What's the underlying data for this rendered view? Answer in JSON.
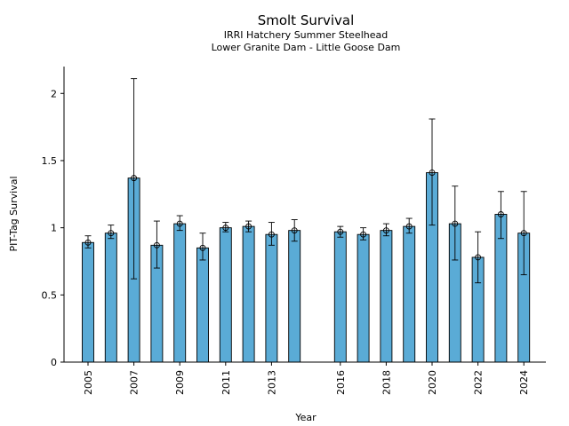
{
  "chart_data": {
    "type": "bar",
    "title": "Smolt Survival",
    "subtitle_lines": [
      "IRRI Hatchery Summer Steelhead",
      "Lower Granite Dam - Little Goose Dam"
    ],
    "xlabel": "Year",
    "ylabel": "PIT-Tag Survival",
    "ylim": [
      0,
      2.2
    ],
    "yticks": [
      0,
      0.5,
      1,
      1.5,
      2
    ],
    "ytick_labels": [
      "0",
      "0.5",
      "1",
      "1.5",
      "2"
    ],
    "grid": false,
    "colors": {
      "bar": "#5aabd6",
      "bar_edge": "#000000",
      "errorbar": "#000000"
    },
    "categories": [
      "2005",
      "2006",
      "2007",
      "2008",
      "2009",
      "2010",
      "2011",
      "2012",
      "2013",
      "2014",
      "2015",
      "2016",
      "2017",
      "2018",
      "2019",
      "2020",
      "2021",
      "2022",
      "2023",
      "2024"
    ],
    "xtick_labels": [
      "2005",
      "2007",
      "2009",
      "2011",
      "2013",
      "2016",
      "2018",
      "2020",
      "2022",
      "2024"
    ],
    "values": [
      0.89,
      0.96,
      1.37,
      0.87,
      1.03,
      0.85,
      1.0,
      1.01,
      0.95,
      0.98,
      null,
      0.97,
      0.95,
      0.98,
      1.01,
      1.41,
      1.03,
      0.78,
      1.1,
      0.96
    ],
    "error_low": [
      0.85,
      0.92,
      0.62,
      0.7,
      0.98,
      0.76,
      0.97,
      0.97,
      0.87,
      0.9,
      null,
      0.93,
      0.91,
      0.94,
      0.96,
      1.02,
      0.76,
      0.59,
      0.92,
      0.65
    ],
    "error_high": [
      0.94,
      1.02,
      2.11,
      1.05,
      1.09,
      0.96,
      1.04,
      1.05,
      1.04,
      1.06,
      null,
      1.01,
      1.0,
      1.03,
      1.07,
      1.81,
      1.31,
      0.97,
      1.27,
      1.27
    ]
  }
}
